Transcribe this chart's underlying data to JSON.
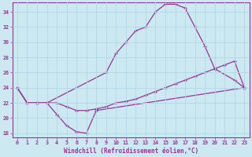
{
  "xlabel": "Windchill (Refroidissement éolien,°C)",
  "bg_color": "#cce8f0",
  "grid_color": "#b0d8e8",
  "line_color": "#993399",
  "xlim": [
    -0.5,
    23.5
  ],
  "ylim": [
    17.5,
    35.2
  ],
  "yticks": [
    18,
    20,
    22,
    24,
    26,
    28,
    30,
    32,
    34
  ],
  "xticks": [
    0,
    1,
    2,
    3,
    4,
    5,
    6,
    7,
    8,
    9,
    10,
    11,
    12,
    13,
    14,
    15,
    16,
    17,
    18,
    19,
    20,
    21,
    22,
    23
  ],
  "line1_x": [
    0,
    1,
    2,
    3,
    4,
    5,
    6,
    7,
    8,
    23
  ],
  "line1_y": [
    24,
    22,
    22,
    22,
    20.5,
    19,
    18.2,
    18,
    21,
    24
  ],
  "line2_x": [
    0,
    1,
    2,
    3,
    4,
    5,
    6,
    7,
    8,
    9,
    10,
    11,
    12,
    13,
    14,
    15,
    16,
    17,
    18,
    19,
    20,
    21,
    22,
    23
  ],
  "line2_y": [
    24,
    22,
    22,
    22,
    22,
    21.5,
    21,
    21,
    21.2,
    21.5,
    22,
    22.2,
    22.5,
    23,
    23.5,
    24,
    24.5,
    25,
    25.5,
    26,
    26.5,
    27,
    27.5,
    24
  ],
  "line3_x": [
    0,
    1,
    2,
    3,
    9,
    10,
    11,
    12,
    13,
    14,
    15,
    16,
    17,
    18,
    19,
    20,
    22,
    23
  ],
  "line3_y": [
    24,
    22,
    22,
    22,
    26,
    28.5,
    30,
    31.5,
    32,
    34,
    35,
    35,
    34.5,
    32,
    29.5,
    26.5,
    25,
    24
  ]
}
